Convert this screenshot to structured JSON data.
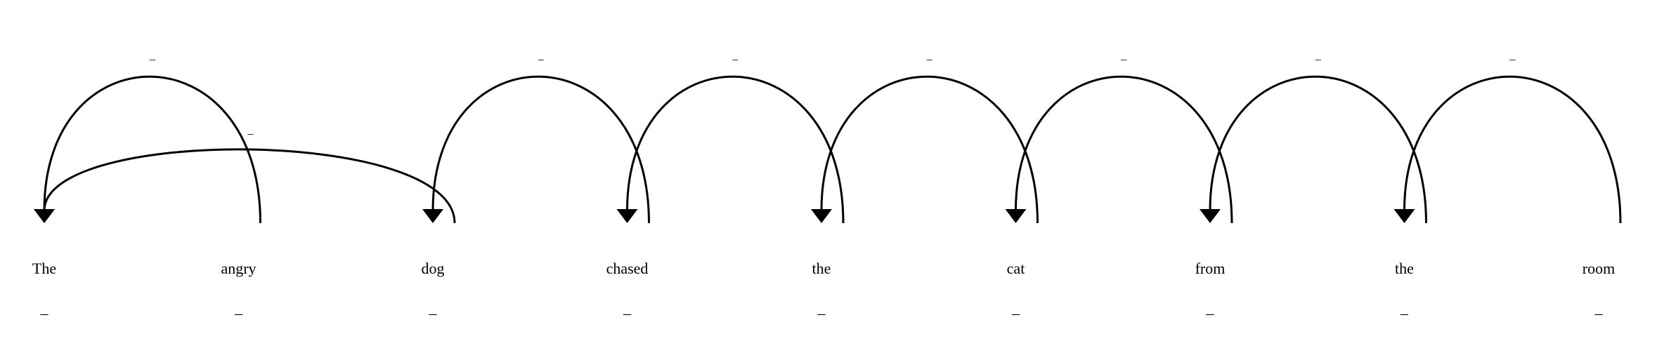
{
  "tokens": [
    {
      "text": "The",
      "tag": "_"
    },
    {
      "text": "angry",
      "tag": "_"
    },
    {
      "text": "dog",
      "tag": "_"
    },
    {
      "text": "chased",
      "tag": "_"
    },
    {
      "text": "the",
      "tag": "_"
    },
    {
      "text": "cat",
      "tag": "_"
    },
    {
      "text": "from",
      "tag": "_"
    },
    {
      "text": "the",
      "tag": "_"
    },
    {
      "text": "room",
      "tag": "_"
    }
  ],
  "arcs": [
    {
      "from": 1,
      "to": 0,
      "label": "_",
      "level": 2
    },
    {
      "from": 2,
      "to": 0,
      "label": "_",
      "level": 1
    },
    {
      "from": 3,
      "to": 2,
      "label": "_",
      "level": 2
    },
    {
      "from": 4,
      "to": 3,
      "label": "_",
      "level": 2
    },
    {
      "from": 5,
      "to": 4,
      "label": "_",
      "level": 2
    },
    {
      "from": 6,
      "to": 5,
      "label": "_",
      "level": 2
    },
    {
      "from": 7,
      "to": 6,
      "label": "_",
      "level": 2
    },
    {
      "from": 8,
      "to": 7,
      "label": "_",
      "level": 2
    }
  ],
  "colors": {
    "stroke": "#000000",
    "background": "#ffffff"
  }
}
